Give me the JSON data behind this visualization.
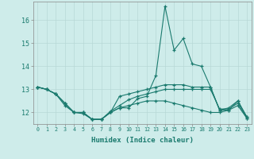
{
  "xlabel": "Humidex (Indice chaleur)",
  "background_color": "#ceecea",
  "grid_color": "#b8d8d6",
  "line_color": "#1a7a6e",
  "xlim": [
    -0.5,
    23.5
  ],
  "ylim": [
    11.5,
    16.8
  ],
  "yticks": [
    12,
    13,
    14,
    15,
    16
  ],
  "xticks": [
    0,
    1,
    2,
    3,
    4,
    5,
    6,
    7,
    8,
    9,
    10,
    11,
    12,
    13,
    14,
    15,
    16,
    17,
    18,
    19,
    20,
    21,
    22,
    23
  ],
  "lines": [
    [
      13.1,
      13.0,
      12.8,
      12.4,
      12.0,
      12.0,
      11.7,
      11.7,
      12.0,
      12.2,
      12.2,
      12.6,
      12.7,
      13.6,
      16.6,
      14.7,
      15.2,
      14.1,
      14.0,
      13.1,
      12.1,
      12.2,
      12.5,
      11.8
    ],
    [
      13.1,
      13.0,
      12.8,
      12.4,
      12.0,
      12.0,
      11.7,
      11.7,
      12.0,
      12.7,
      12.8,
      12.9,
      13.0,
      13.1,
      13.2,
      13.2,
      13.2,
      13.1,
      13.1,
      13.1,
      12.1,
      12.1,
      12.5,
      11.8
    ],
    [
      13.1,
      13.0,
      12.8,
      12.3,
      12.0,
      11.95,
      11.7,
      11.7,
      12.05,
      12.3,
      12.55,
      12.7,
      12.8,
      12.9,
      13.0,
      13.0,
      13.0,
      13.0,
      13.0,
      13.0,
      12.15,
      12.15,
      12.4,
      11.75
    ],
    [
      13.1,
      13.0,
      12.8,
      12.4,
      12.0,
      12.0,
      11.7,
      11.7,
      12.0,
      12.2,
      12.3,
      12.4,
      12.5,
      12.5,
      12.5,
      12.4,
      12.3,
      12.2,
      12.1,
      12.0,
      12.0,
      12.1,
      12.3,
      11.75
    ]
  ]
}
